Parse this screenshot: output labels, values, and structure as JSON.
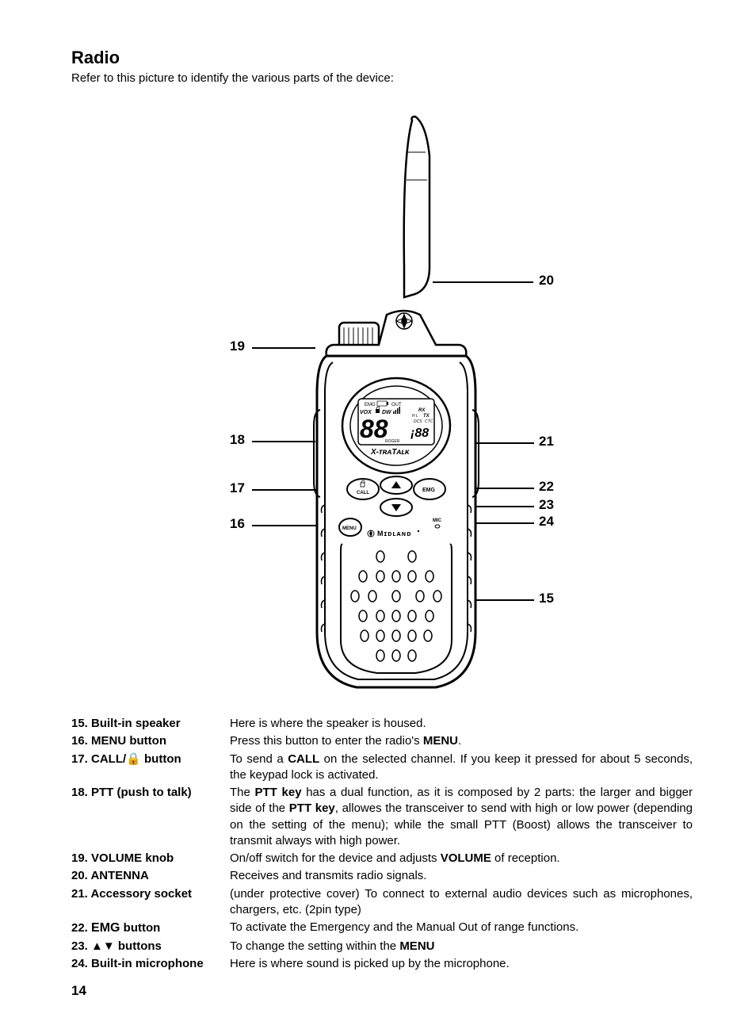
{
  "title": "Radio",
  "subtitle": "Refer to this picture to identify the various parts of the device:",
  "pageNumber": "14",
  "lcd": {
    "line1": "EMG",
    "line1b": "OUT",
    "line2": "VOX",
    "line2b": "DW",
    "rx": "RX",
    "tx": "TX",
    "dcs": "DCS",
    "ctc": "CTC",
    "hl": "H  L",
    "digits": "88",
    "subdigits": "88",
    "roger": "ROGER",
    "brand": "X-TRATALK"
  },
  "buttons": {
    "call": "CALL",
    "emg": "EMG",
    "menu": "MENU",
    "mic": "MIC",
    "brand": "MIDLAND"
  },
  "callouts": {
    "15": "15",
    "16": "16",
    "17": "17",
    "18": "18",
    "19": "19",
    "20": "20",
    "21": "21",
    "22": "22",
    "23": "23",
    "24": "24"
  },
  "defs": [
    {
      "num": "15.",
      "term": "Built-in speaker",
      "desc": "Here is where the speaker is housed."
    },
    {
      "num": "16.",
      "term": "MENU button",
      "desc": "Press this button to enter the radio's <b>MENU</b>."
    },
    {
      "num": "17.",
      "term": "CALL/🔒 button",
      "desc": "To send a <b>CALL</b> on the selected channel. If you keep it pressed for about 5 seconds, the keypad lock is activated."
    },
    {
      "num": "18.",
      "term": "PTT (push to talk)",
      "desc": "The <b>PTT key</b> has a dual function, as it is composed by 2 parts: the larger and bigger side of the <b>PTT key</b>, allowes the transceiver to send with high or low power (depending on the setting of the menu); while the small PTT (Boost) allows the transceiver to transmit always with high power."
    },
    {
      "num": "19.",
      "term": "VOLUME knob",
      "desc": "On/off switch for the device and adjusts <b>VOLUME</b> of reception."
    },
    {
      "num": "20.",
      "term": "ANTENNA",
      "desc": "Receives and transmits radio signals."
    },
    {
      "num": "21.",
      "term": "Accessory socket",
      "desc": "(under protective cover) To connect to external audio devices such as microphones, chargers, etc. (2pin type)"
    },
    {
      "num": "22.",
      "term": "EMG button",
      "desc": "To activate the Emergency and the Manual Out of range functions."
    },
    {
      "num": "23.",
      "term": "▲▼ buttons",
      "desc": "To change the setting within the <b>MENU</b>"
    },
    {
      "num": "24.",
      "term": "Built-in microphone",
      "desc": "Here is where sound is picked up by the microphone."
    }
  ],
  "termOverrides": {
    "22": "<b>22. EMG button</b>",
    "default": null
  }
}
